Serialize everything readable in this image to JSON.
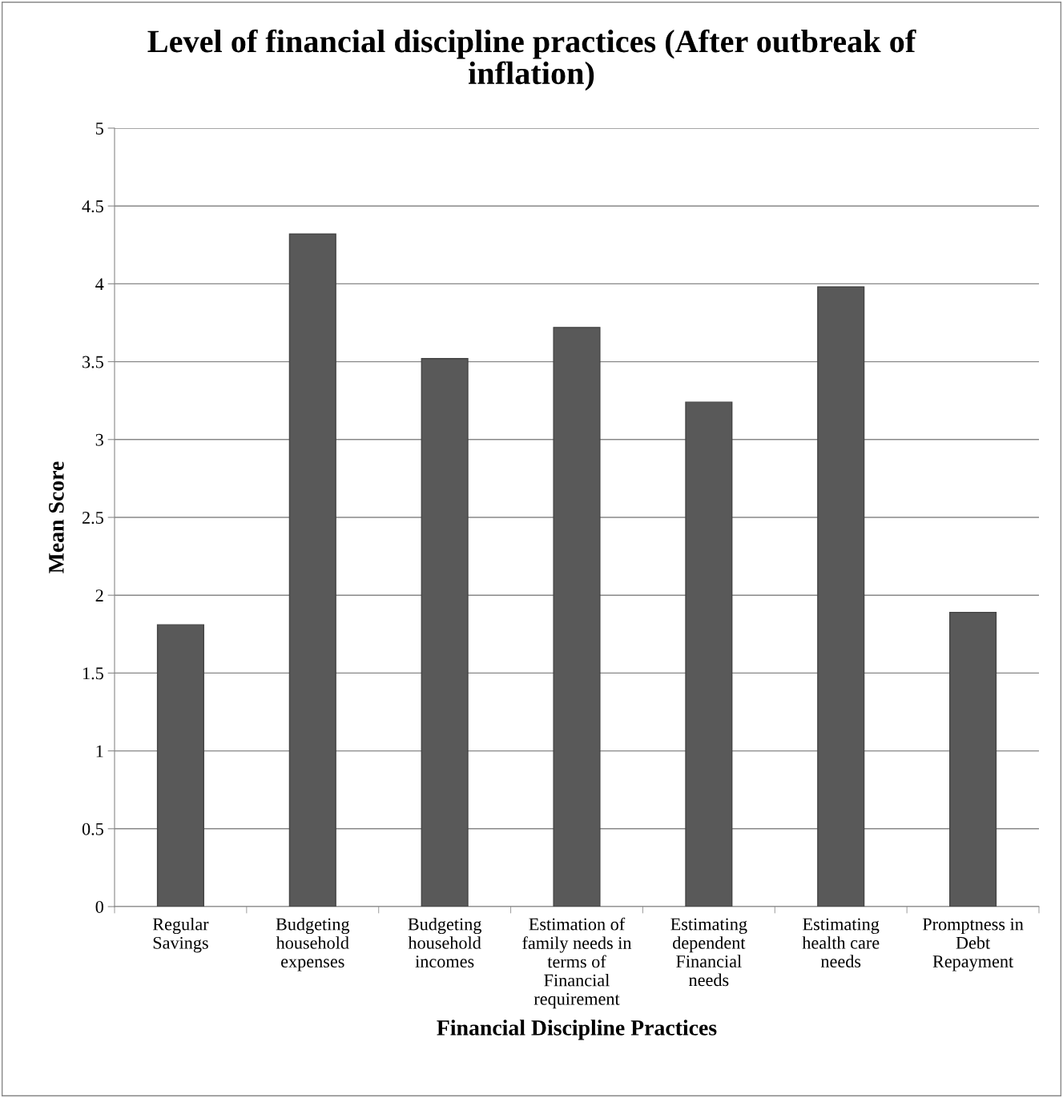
{
  "chart_data": {
    "type": "bar",
    "title": "Level of financial discipline practices (After outbreak of\ninflation)",
    "xlabel": "Financial Discipline Practices",
    "ylabel": "Mean Score",
    "categories": [
      "Regular\nSavings",
      "Budgeting\nhousehold\nexpenses",
      "Budgeting\nhousehold\nincomes",
      "Estimation of\nfamily needs in\nterms of\nFinancial\nrequirement",
      "Estimating\ndependent\nFinancial\nneeds",
      "Estimating\nhealth care\nneeds",
      "Promptness in\nDebt\nRepayment"
    ],
    "values": [
      1.81,
      4.32,
      3.52,
      3.72,
      3.24,
      3.98,
      1.89
    ],
    "color": "#595959",
    "ylim": [
      0,
      5
    ],
    "yticks": [
      0,
      0.5,
      1,
      1.5,
      2,
      2.5,
      3,
      3.5,
      4,
      4.5,
      5
    ],
    "grid": "y",
    "legend": false
  }
}
